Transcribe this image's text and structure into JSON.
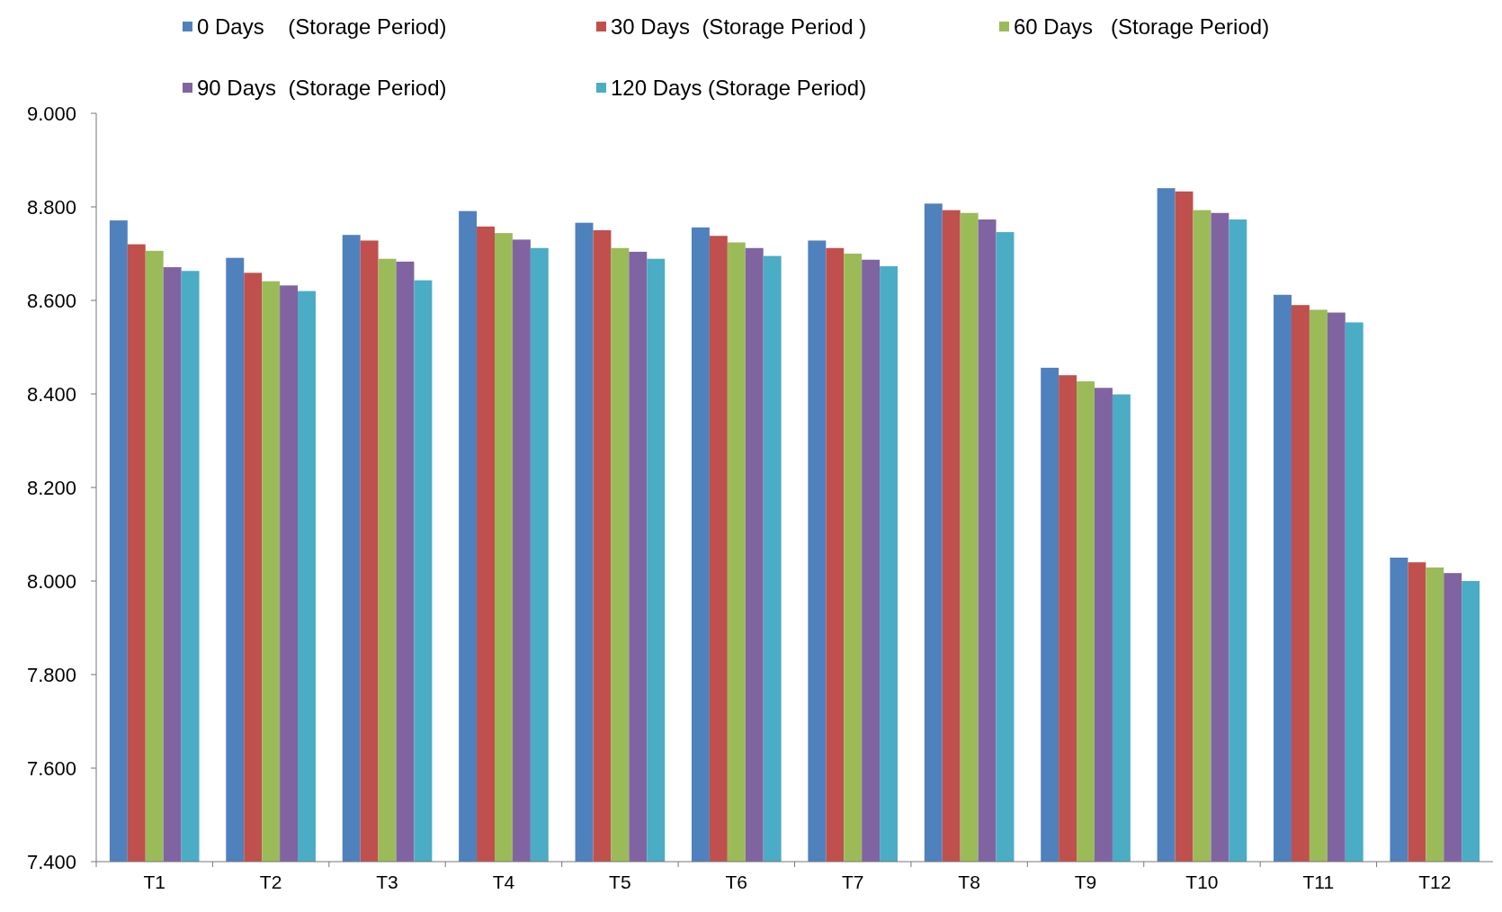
{
  "chart_data": {
    "type": "bar",
    "categories": [
      "T1",
      "T2",
      "T3",
      "T4",
      "T5",
      "T6",
      "T7",
      "T8",
      "T9",
      "T10",
      "T11",
      "T12"
    ],
    "series": [
      {
        "name": "0 Days    (Storage Period)",
        "color": "#4f81bd",
        "values": [
          8771,
          8691,
          8740,
          8791,
          8766,
          8756,
          8728,
          8807,
          8456,
          8840,
          8612,
          8050
        ]
      },
      {
        "name": "30 Days  (Storage Period )",
        "color": "#c0504d",
        "values": [
          8720,
          8659,
          8728,
          8758,
          8750,
          8738,
          8712,
          8793,
          8440,
          8833,
          8590,
          8040
        ]
      },
      {
        "name": "60 Days   (Storage Period)",
        "color": "#9bbb59",
        "values": [
          8706,
          8641,
          8689,
          8744,
          8712,
          8724,
          8700,
          8787,
          8427,
          8793,
          8580,
          8029
        ]
      },
      {
        "name": "90 Days  (Storage Period)",
        "color": "#8064a2",
        "values": [
          8671,
          8632,
          8683,
          8730,
          8704,
          8712,
          8687,
          8773,
          8413,
          8787,
          8574,
          8017
        ]
      },
      {
        "name": "120 Days (Storage Period)",
        "color": "#4bacc6",
        "values": [
          8663,
          8620,
          8643,
          8712,
          8689,
          8695,
          8673,
          8746,
          8399,
          8773,
          8553,
          8000
        ]
      }
    ],
    "ylim": [
      7400,
      9000
    ],
    "yticks": [
      {
        "value": 7400,
        "label": "7.400"
      },
      {
        "value": 7600,
        "label": "7.600"
      },
      {
        "value": 7800,
        "label": "7.800"
      },
      {
        "value": 8000,
        "label": "8.000"
      },
      {
        "value": 8200,
        "label": "8.200"
      },
      {
        "value": 8400,
        "label": "8.400"
      },
      {
        "value": 8600,
        "label": "8.600"
      },
      {
        "value": 8800,
        "label": "8.800"
      },
      {
        "value": 9000,
        "label": "9.000"
      }
    ],
    "grid": false,
    "legend": "top"
  }
}
